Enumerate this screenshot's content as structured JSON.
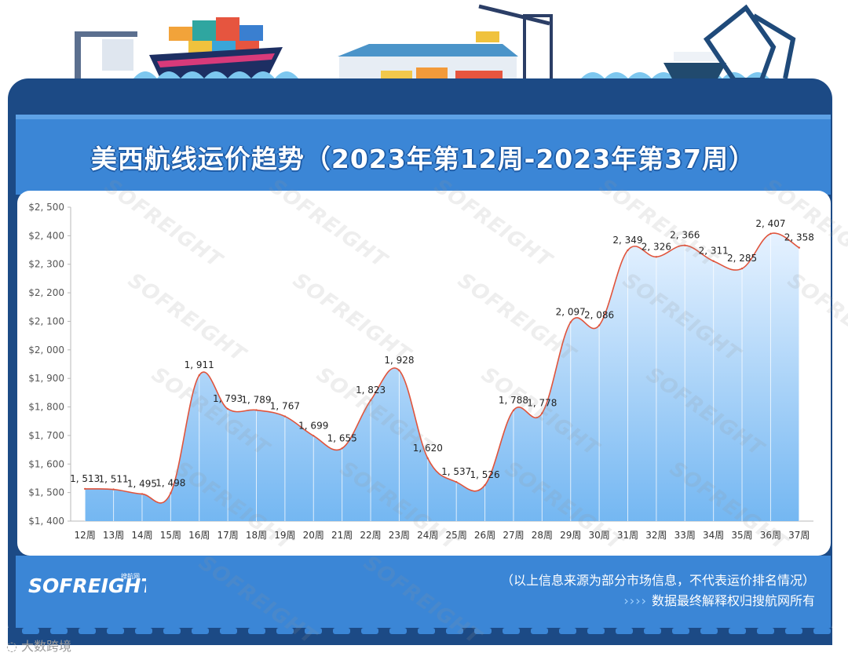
{
  "title": "美西航线运价趋势（2023年第12周-2023年第37周）",
  "brand": "SOFREIGHT",
  "brand_sub": "搜航网",
  "watermark": "SOFREIGHT",
  "footer": {
    "note1": "（以上信息来源为部分市场信息，不代表运价排名情况）",
    "arrows": "››››",
    "note2": "数据最终解释权归搜航网所有",
    "source_mark": "大数跨境"
  },
  "colors": {
    "frame": "#1c4a85",
    "band": "#3b86d6",
    "line": "#e0543c",
    "area_top": "#e6f2ff",
    "area_bottom": "#74b7f2"
  },
  "chart_data": {
    "type": "area",
    "categories": [
      "12周",
      "13周",
      "14周",
      "15周",
      "16周",
      "17周",
      "18周",
      "19周",
      "20周",
      "21周",
      "22周",
      "23周",
      "24周",
      "25周",
      "26周",
      "27周",
      "28周",
      "29周",
      "30周",
      "31周",
      "32周",
      "33周",
      "34周",
      "35周",
      "36周",
      "37周"
    ],
    "values": [
      1513,
      1511,
      1495,
      1498,
      1911,
      1793,
      1789,
      1767,
      1699,
      1655,
      1823,
      1928,
      1620,
      1537,
      1526,
      1788,
      1778,
      2097,
      2086,
      2349,
      2326,
      2366,
      2311,
      2285,
      2407,
      2358
    ],
    "data_labels": [
      "1, 513",
      "1, 511",
      "1, 495",
      "1, 498",
      "1, 911",
      "1, 793",
      "1, 789",
      "1, 767",
      "1, 699",
      "1, 655",
      "1, 823",
      "1, 928",
      "1, 620",
      "1, 537",
      "1, 526",
      "1, 788",
      "1, 778",
      "2, 097",
      "2, 086",
      "2, 349",
      "2, 326",
      "2, 366",
      "2, 311",
      "2, 285",
      "2, 407",
      "2, 358"
    ],
    "y_ticks": [
      1400,
      1500,
      1600,
      1700,
      1800,
      1900,
      2000,
      2100,
      2200,
      2300,
      2400,
      2500
    ],
    "y_tick_labels": [
      "$1, 400",
      "$1, 500",
      "$1, 600",
      "$1, 700",
      "$1, 800",
      "$1, 900",
      "$2, 000",
      "$2, 100",
      "$2, 200",
      "$2, 300",
      "$2, 400",
      "$2, 500"
    ],
    "ylim": [
      1400,
      2500
    ],
    "grid": false,
    "legend": "none"
  }
}
